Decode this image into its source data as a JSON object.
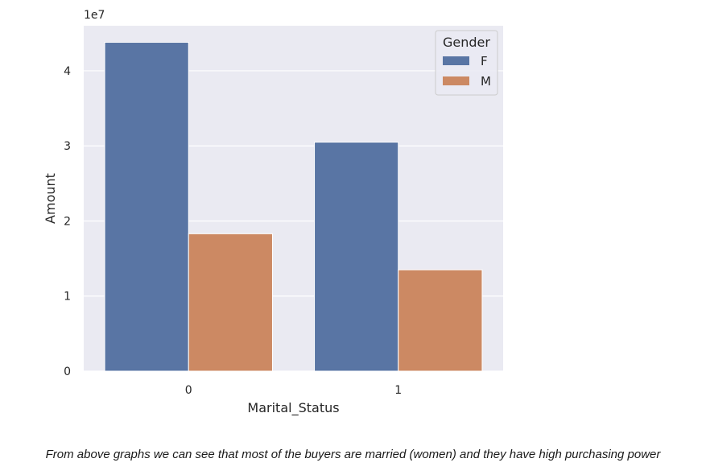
{
  "chart_data": {
    "type": "bar",
    "categories": [
      "0",
      "1"
    ],
    "series": [
      {
        "name": "F",
        "values": [
          43800000,
          30500000
        ],
        "color": "#5975a4"
      },
      {
        "name": "M",
        "values": [
          18300000,
          13500000
        ],
        "color": "#cc8963"
      }
    ],
    "xlabel": "Marital_Status",
    "ylabel": "Amount",
    "y_offset_text": "1e7",
    "y_ticks": [
      "0",
      "1",
      "2",
      "3",
      "4"
    ],
    "y_tick_values": [
      0,
      10000000,
      20000000,
      30000000,
      40000000
    ],
    "ylim": [
      0,
      46000000
    ],
    "legend": {
      "title": "Gender",
      "placement": "top-right"
    },
    "grid": true,
    "background": "#eaeaf2"
  },
  "caption": "From above graphs we can see that most of the buyers are married (women) and they have high purchasing power"
}
